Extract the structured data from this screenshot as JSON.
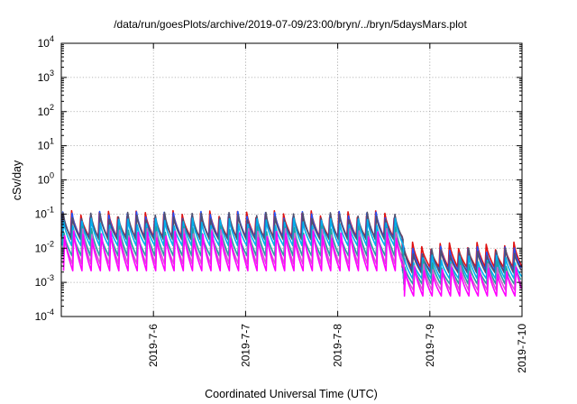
{
  "chart_data": {
    "type": "line",
    "title": "/data/run/goesPlots/archive/2019-07-09/23:00/bryn/../bryn/5daysMars.plot",
    "xlabel": "Coordinated Universal Time (UTC)",
    "ylabel": "cSv/day",
    "yscale": "log",
    "ylim": [
      0.0001,
      10000
    ],
    "xlim": [
      5.0,
      10.0
    ],
    "grid": true,
    "y_ticks": [
      {
        "base": "10",
        "exp": "-4",
        "value": -4
      },
      {
        "base": "10",
        "exp": "-3",
        "value": -3
      },
      {
        "base": "10",
        "exp": "-2",
        "value": -2
      },
      {
        "base": "10",
        "exp": "-1",
        "value": -1
      },
      {
        "base": "10",
        "exp": "0",
        "value": 0
      },
      {
        "base": "10",
        "exp": "1",
        "value": 1
      },
      {
        "base": "10",
        "exp": "2",
        "value": 2
      },
      {
        "base": "10",
        "exp": "3",
        "value": 3
      },
      {
        "base": "10",
        "exp": "4",
        "value": 4
      }
    ],
    "x_ticks": [
      {
        "label": "2019-7-6",
        "value": 6
      },
      {
        "label": "2019-7-7",
        "value": 7
      },
      {
        "label": "2019-7-8",
        "value": 8
      },
      {
        "label": "2019-7-9",
        "value": 9
      },
      {
        "label": "2019-7-10",
        "value": 10
      }
    ],
    "period_days": 0.1,
    "shift_day": 8.65,
    "series": [
      {
        "color": "#e01010",
        "peak_before": 0.1,
        "trough_before": 0.022,
        "peak_after": 0.012,
        "trough_after": 0.0028
      },
      {
        "color": "#2050ff",
        "peak_before": 0.095,
        "trough_before": 0.02,
        "peak_after": 0.009,
        "trough_after": 0.0022
      },
      {
        "color": "#505070",
        "peak_before": 0.09,
        "trough_before": 0.018,
        "peak_after": 0.008,
        "trough_after": 0.0019
      },
      {
        "color": "#00b0f0",
        "peak_before": 0.06,
        "trough_before": 0.012,
        "peak_after": 0.005,
        "trough_after": 0.0013
      },
      {
        "color": "#20a0a0",
        "peak_before": 0.035,
        "trough_before": 0.006,
        "peak_after": 0.0035,
        "trough_after": 0.0009
      },
      {
        "color": "#d060d0",
        "peak_before": 0.03,
        "trough_before": 0.0035,
        "peak_after": 0.0028,
        "trough_after": 0.0006
      },
      {
        "color": "#ff00ff",
        "peak_before": 0.025,
        "trough_before": 0.0022,
        "peak_after": 0.0022,
        "trough_after": 0.0004
      }
    ]
  }
}
